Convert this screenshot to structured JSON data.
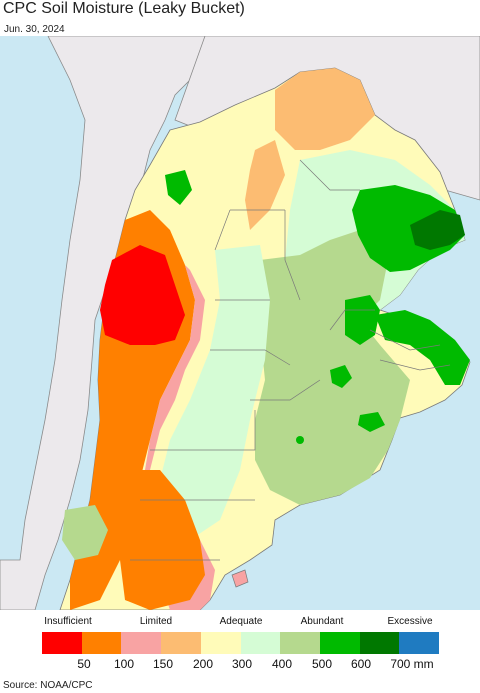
{
  "title": "CPC Soil Moisture (Leaky Bucket)",
  "date": "Jun. 30, 2024",
  "source": "Source: NOAA/CPC",
  "colors": {
    "ocean": "#cbe8f3",
    "land_outside": "#ece9ec",
    "border": "#7a7a7a"
  },
  "legend": {
    "categories": [
      "Insufficient",
      "Limited",
      "Adequate",
      "Abundant",
      "Excessive"
    ],
    "colors": [
      "#ff0000",
      "#ff8000",
      "#f8a3a3",
      "#fcbc72",
      "#fffbb9",
      "#d5fcd5",
      "#b5d98e",
      "#00ba00",
      "#007800",
      "#1f7bc1"
    ],
    "ticks": [
      "50",
      "100",
      "150",
      "200",
      "300",
      "400",
      "500",
      "600",
      "700 mm"
    ]
  }
}
